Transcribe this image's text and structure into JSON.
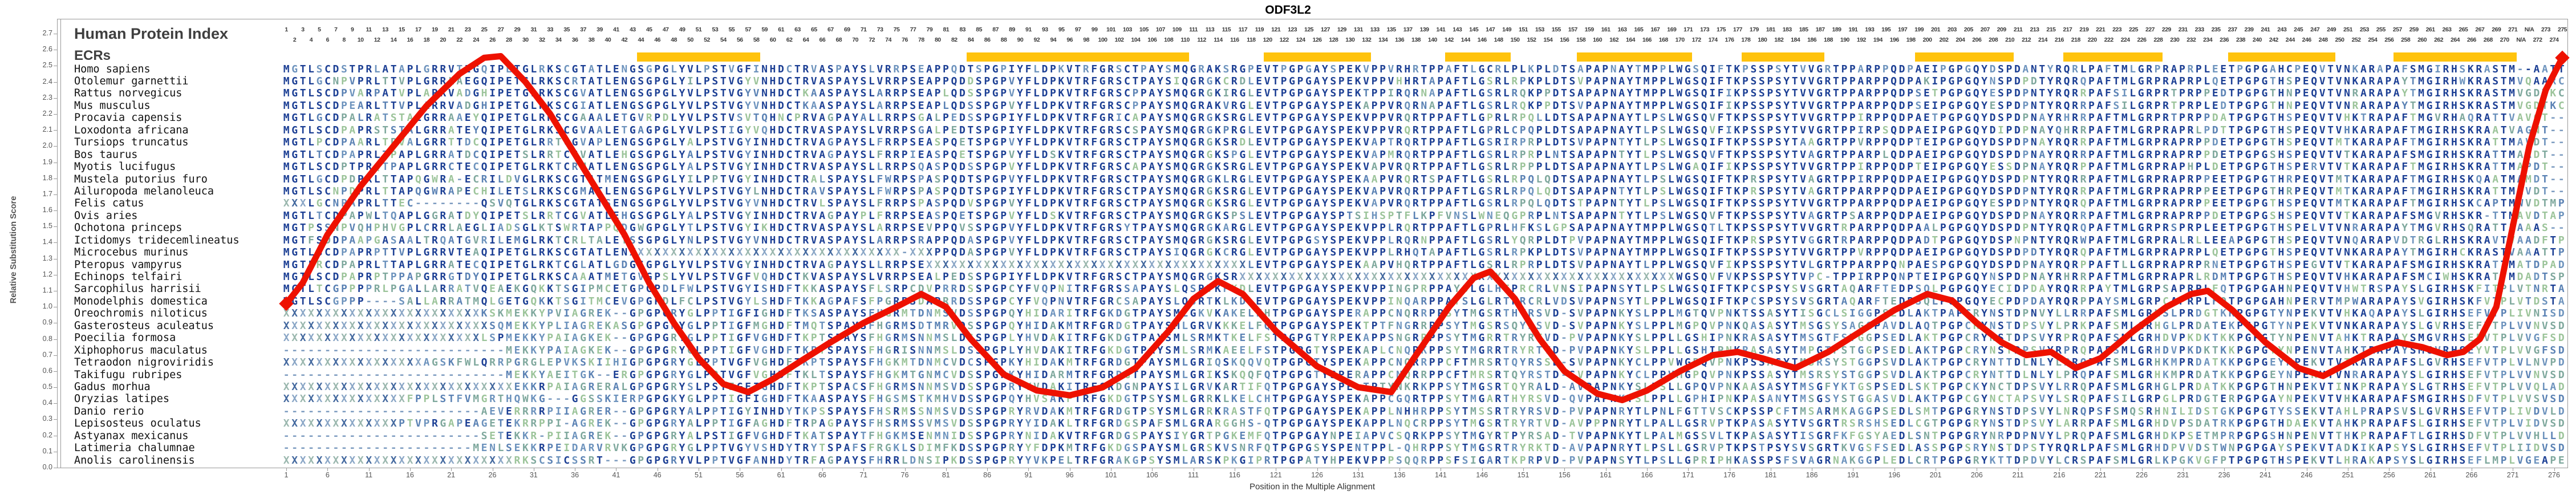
{
  "title": "ODF3L2",
  "header": {
    "index_label": "Human Protein Index",
    "ecrs_label": "ECRs",
    "total_columns": 277,
    "na_columns": [
      272,
      273
    ],
    "na_text": "N/A"
  },
  "y_axis": {
    "label": "Relative Substitution Score",
    "min": 0.0,
    "max": 2.7,
    "step": 0.1
  },
  "x_axis": {
    "label": "Position in the Multiple Alignment",
    "tick_start": 1,
    "tick_step": 5,
    "tick_end": 276
  },
  "colors": {
    "curve": "#ee1100",
    "ecr": "#ffc30d",
    "match": "#1c3f94",
    "mid": "#6d93bd",
    "teal": "#7fa89d",
    "green": "#9cc49a",
    "slate": "#5b82b4",
    "gap": "#7d9cc0",
    "x1": "#44699f",
    "x2": "#8aa6c6",
    "x3": "#9ab7ae",
    "axis": "#999999"
  },
  "chart_data": {
    "type": "line",
    "title": "ODF3L2",
    "xlabel": "Position in the Multiple Alignment",
    "ylabel": "Relative Substitution Score",
    "ylim": [
      0.0,
      2.7
    ],
    "xlim": [
      1,
      277
    ],
    "legend": [],
    "grid": false,
    "ecr_regions_columns": [
      [
        44,
        58
      ],
      [
        84,
        110
      ],
      [
        120,
        132
      ],
      [
        142,
        149
      ],
      [
        158,
        171
      ],
      [
        178,
        187
      ],
      [
        199,
        210
      ],
      [
        217,
        228
      ],
      [
        237,
        249
      ],
      [
        257,
        271
      ]
    ],
    "curve": [
      [
        1,
        1.02
      ],
      [
        3,
        1.15
      ],
      [
        6,
        1.45
      ],
      [
        10,
        1.75
      ],
      [
        14,
        2.0
      ],
      [
        18,
        2.25
      ],
      [
        22,
        2.45
      ],
      [
        25,
        2.55
      ],
      [
        27,
        2.56
      ],
      [
        30,
        2.4
      ],
      [
        33,
        2.2
      ],
      [
        36,
        1.95
      ],
      [
        39,
        1.7
      ],
      [
        42,
        1.45
      ],
      [
        45,
        1.15
      ],
      [
        48,
        0.9
      ],
      [
        51,
        0.68
      ],
      [
        54,
        0.52
      ],
      [
        57,
        0.47
      ],
      [
        60,
        0.55
      ],
      [
        63,
        0.65
      ],
      [
        67,
        0.78
      ],
      [
        71,
        0.9
      ],
      [
        75,
        1.0
      ],
      [
        78,
        1.08
      ],
      [
        81,
        1.0
      ],
      [
        84,
        0.8
      ],
      [
        88,
        0.58
      ],
      [
        92,
        0.48
      ],
      [
        96,
        0.45
      ],
      [
        100,
        0.5
      ],
      [
        104,
        0.62
      ],
      [
        108,
        0.85
      ],
      [
        111,
        1.05
      ],
      [
        114,
        1.16
      ],
      [
        117,
        1.08
      ],
      [
        121,
        0.85
      ],
      [
        126,
        0.63
      ],
      [
        131,
        0.5
      ],
      [
        135,
        0.47
      ],
      [
        138,
        0.7
      ],
      [
        142,
        1.0
      ],
      [
        145,
        1.18
      ],
      [
        147,
        1.22
      ],
      [
        150,
        1.05
      ],
      [
        153,
        0.8
      ],
      [
        156,
        0.6
      ],
      [
        160,
        0.46
      ],
      [
        163,
        0.42
      ],
      [
        166,
        0.48
      ],
      [
        170,
        0.6
      ],
      [
        174,
        0.7
      ],
      [
        177,
        0.72
      ],
      [
        180,
        0.68
      ],
      [
        184,
        0.62
      ],
      [
        188,
        0.72
      ],
      [
        192,
        0.85
      ],
      [
        196,
        0.98
      ],
      [
        200,
        1.08
      ],
      [
        203,
        1.04
      ],
      [
        206,
        0.9
      ],
      [
        209,
        0.78
      ],
      [
        212,
        0.7
      ],
      [
        215,
        0.72
      ],
      [
        218,
        0.62
      ],
      [
        221,
        0.68
      ],
      [
        225,
        0.85
      ],
      [
        229,
        1.0
      ],
      [
        232,
        1.08
      ],
      [
        234,
        1.1
      ],
      [
        237,
        0.98
      ],
      [
        241,
        0.78
      ],
      [
        245,
        0.62
      ],
      [
        248,
        0.57
      ],
      [
        251,
        0.65
      ],
      [
        254,
        0.73
      ],
      [
        257,
        0.78
      ],
      [
        260,
        0.75
      ],
      [
        263,
        0.7
      ],
      [
        265,
        0.72
      ],
      [
        267,
        0.8
      ],
      [
        269,
        1.0
      ],
      [
        271,
        1.5
      ],
      [
        273,
        2.0
      ],
      [
        275,
        2.35
      ],
      [
        277,
        2.55
      ]
    ]
  },
  "species": [
    {
      "name": "Homo sapiens",
      "seq": "MGTLSCDSTPRLATAPLGRRVTEGQIPETGLRKSCGTATLENGSGPGLYVLPSTVGFINHDCTRVASPAYSLVRRPSEAPPQDTSPGPIYFLDPKVTRFGRSCTPAYSMQGRAKSRGPEVTPGPGAYSPEKVPPVRHRTPPAFTLGCRLPLKPLDTSAPAPNAYTMPPLWGSQIFTKPSSPSYTVVGRTPPARPPQDPAEIPGPGQYDSPDANTYRQRLPAFTMLGRPRAPRPLEETPGPGAHCPEQVTVNKARAPAFSMGIRHSKRASTM--AATT"
    },
    {
      "name": "Otolemur garnettii",
      "seq": "MGTLGCNPVPRLTTVPLGRRLAEGQIPETGLRKSCRTATLENGSGPGLYILPSTVGYVNHDCTRVASPAYSLVRRPSEAPPQDDSPGPVYFLDPKVTRFGRSCTPAYSIQGRGKCRDLEVTPGPGAYSPEKVPPVHHRTAPAFTLGSRLRPKPLDTSVPAPNAYTMPPLWGSQIFTKPSSPSYTVVGRTPPARPPQDPAKIPGPGQYNSPDPDTYRQRQPAFTMLGRPRAPRPLQETPGPGTHSPEQVTVNKARAPAYTMGIRHWKRASTMVQAARC"
    },
    {
      "name": "Rattus norvegicus",
      "seq": "MGTLSCDPVARPATVPLARRVADGHIPETGLRKSCGVATLENGSGPGLYVLPSTVGYVNHDCTKAASPAYSLARRPSEAPLQDSSPGPVYFLDPKVTRFGRSCPPAYSMQGRGKIRGLEVTPGPGAYSPEKTPPIRQRNAPAFTLGSRLRQKPPDTSAPAPNAYTMPPLWGSQIFIKPSSPSYTVVGRTPPARPPQDPSETPGPGQYESPDPNTYRQRRPAFSILGRPRTPRPPEDTPGPGTHNPEQVTVNRARAPAYTMGIRHSKRASTMVGDTKC"
    },
    {
      "name": "Mus musculus",
      "seq": "MGTLSCDPEARLTTVPLARRVADGHIPETGLRKSCGIATLENGSGPGLYVLPSTVGYVNHDCTKAASPAYSLARRPSEAPLQDSSPGPVYFLDPKVTRFGRSCPPAYSMQGRAKVRGLEVTPGPGAYSPEKAPPVRQRNAPAFTLGSRLRQKPPDTSVPAPNAYTMPPLWGSQIFIKPSSPSYTVVGRTPPARPPQDPSEIPGPGQYESPDPNTYRQRRPAFSILGRPRTPRPLEDTPGPGTHNPEQVTVNRARAPAYTMGIRHSKRASTMVGDTKC"
    },
    {
      "name": "Procavia capensis",
      "seq": "MGTLGCDPALRATSTALGRRAAEYQIPETGLRKSCGAAALETGVRPDLYVLPSTVSVTQHNCPRVAGPAYALLRRPSGALPEDSSPGPIYFLDPKVTRFGRICAPAYSMQGRGKSRGLEVTPGPGAYSPEKVPPVRQRTPPAFTLGPRLRPQLLDTSAPAPNAYTLPSLWGSQVFTKPSSPSYTVVGRTPPIRPPQDPAETPGPGQYDSPDPNAYRHRRPAFTMLGRPRTPRPPDATPGPGTHSPEQVTVHKTRAPAFTMGVRHAQRATTVAVGT--"
    },
    {
      "name": "Loxodonta africana",
      "seq": "MGTLSCDPAPRSTSTALGRRATEYQIPETGLRKSCGVAALETGAGPGLYVLPSTIGYVQHDCTRVASPAYSLVRRPSGALPEDTSPGPIYFLDPKVTRFGRSCSPAYSMQGRGKPRGLEVTPGPGAYSPEKVPPVRQRTPPAFTLGPRLCPQPLDTSAPAPNAYTLPSLWGSQVFIKPSSPSYTVVGRTPPIRPSQDPAEIPGPGQYDIPDPNAYQHRRPAFTMLGRPRAPRLPDTTPGPGTHSPEQVTVHKARAPAFTMGIRHSKRAATVAGNT--"
    },
    {
      "name": "Tursiops truncatus",
      "seq": "MGTLPCDPAARLTPVALGRRTTDCQIPETGLRRTCGVAPLENGSGPGLYALPSTVGYINHDCTRVAGPAYSLFRRPSEASPQETSPGPVYFLDPKVTRFGRSCTPAYSMQGRGKSRDLEVTPGPGAYSPEKVAPTRQRTPPAFTLGSRIRPRPLDTSVPAPNTYTLPSLWGSQIFTKPSSPSYTAAGRTPPVRPPQDPTEIPGPGQYDSPDPNAYRQRRPAFTMLGRPRAPRPPDETPGPGTHSPEQVTMTKARAPAFTMGIRHSKRATTMAVDT--"
    },
    {
      "name": "Bos taurus",
      "seq": "MGTLTCDPAPRLTPAPLGRRATDCQIPETSLRRTCGVATLEHGSGPGLYALPSTVGYINHDCTRVAGPAYSLFRRPIEASPQETSPGPVYFLDSKVTRFGRSCTPAYSMQGRGKSPGLEVTPGPGAYSPEKVAPMRQRTPPAFTLGSRLRPRPLNTSAPAPNTYTLPSLWGSQVFTKPSSPSYTVAGRTPPARPLQDPAEIPGPGQYDSPDPNAYRQRRPAFTMLGRPRAPRPPDETPGPGSHSPEQVTVTKARAPAFSMGIRHSKRATTMAADT--"
    },
    {
      "name": "Myotis lucifugus",
      "seq": "MGTLSCDPTPRQTPAPLGRRCTECQIPETGLRKTCRMATLENGSGPGLYALPSTVGYINHDCTRVASPAYSLLRRPSQASPQDSSPGPVYFLDPKVTRFGRSCAPAYSMQGRGKSRGLEVTPGPGAYSPEKVAPVRQRTPPAFTLGSRLRPPPLDTSAPAPNAYTLPSLWGAQIFIKPSSPSYTVVGRTPPIRPPQDPTEIPGPGQYESSDPNAYRQRPPAFTMLGRPRAPHPLDETPGPGTHSPERVTVTKARAPAFTMGIRHSKRATTMAPDT--"
    },
    {
      "name": "Mustela putorius furo",
      "seq": "MGTLGCDPDPRLTTAPQGWRA-ECRILDVGLRKSCGTATMENGSGPGLYILPPTVGYINHDCTRALSPAYSLFWRPSPASPQDTSPGPVYFLDPKVTRFGRSCTPAYSMQGRGKLRGLEVTPGPGAYSPEKAAPVRQRTSPAFTLGSRLRPQLQDTSAPAPNAYTLPSLWGSQIFTKPRSPSYTVAGRTPPIRPPQDPAEIPGPGQYDSPDPNTYRQRRPAFTMLGRPRAPRPPEETPGPGTHRPEQVTMTKARAPAFTMGIRHSKQAATMAMDT--"
    },
    {
      "name": "Ailuropoda melanoleuca",
      "seq": "MGTLSCNPDPRLTTAPQGWRAPECHILETSLRKSCGMATLENGSGPGLYVLPSTVGYLNHDCTRAVSPAYSLFWRPSPASPQDTSPGPIYFLDPKVTRFGRSCTPAYSMQGRGKSRGLEVTPGPGAYSPEKVAPVRQRTPPAFTLGSRLRPQLQDTSAPAPNTYTLPSLWGSQIFTKPRSPSYTVAGRTPPARPPQDPAEIPGPGQYDSPDPNTYRQRRPAFTMLGRPRAPRPPEETPGPGTHRPEQVTMTKARAPAFTMGIRHSKRATTMAVDT--"
    },
    {
      "name": "Felis catus",
      "seq": "XXXLGCNPAPRLTTEC--------QSVQTGLRKSCGTATSENGSGPGLYVLPSTVGYVNHDCTRVLSPAYSLFRRPSPASPQDVSPGPVYFLDPKVTRFGRSCTPAYSMQGRGKSRGLEVTPGPGAYSPEKVAPVRQRTPPAFTLGSRLRPQLQDTSTPAPNTYTLPSLWGSQIFTKPSSPSYTVVGRTPPARPPQDPAEIPGPGQYESPDPNTYRQRQPAFTMLGRPRAPRPPEETPGPGTHSPEQVTMTKARAPAFTMGIRHSKCAPTMWVDTMP"
    },
    {
      "name": "Ovis aries",
      "seq": "MGTLTCDPAPWLTQAPLGGRATDYQIPETSLRRTCGVATLEHGSGPGLYALPSTVGYINHDCTRVAGPAYPLFRRPSEASPQETSPGPVYFLDSKVTRFGRSCTPAYSMQGRGKSPSLEVTPGPGAYSPTSIHSPTFLKPFVNSLWNEQGPRPLNTSAPAPNTYTLPSLWGSQVFTKPSSPSYTVAGRTPSARPPQDPAEIPGPGQYDSPDPNAYRQRRPAFTMLGRPRAPRPPDETPGPGSHSPEQVTVTKARAPAFSMGVRHSKR-TTMAVDTAP"
    },
    {
      "name": "Ochotona princeps",
      "seq": "MGTPSSNPVQHPHVGPLCRRLAEGLIADSGLKTSWRTAPPQDGWGPGLYTLPSTVGYIKHDCTRVASPAYSLARRPSEVPPQVSSPGPVYFLDPKVTRFGRSYTPAYSMQGRGKARGLEVTPGPGAYSPEKVPPLRQRTPPAFTLGPRLHFKSLGPSAPAPNAYTMPPLWGSQTLTKPSSPSYTVVGRTRPARPPQDPAALPGPGQYDSPDPNTYRQRQPAFTMLGRPRSPRPLEETPGPGTHSPELVTVNRARAPAYTMGVRHSQRATTLAAAS--"
    },
    {
      "name": "Ictidomys tridecemlineatus",
      "seq": "MGTFSDDPAAPGASAALTRQATGVRILEMGLRKTCRLTALETSSGPGLYNLPSTVGYVNHDCTRVASPAYSLARRPSRAPPQDASPGPVYFLDPKVTRFGRSCTPAYSMQGRGKSRGLEVTPGPGSYSPEKVPPLRQRNPPAFTLGSRLYQRPLDTPVPAPNAYTMPPLWGSQIFTKPRSPSYTVGGRTRPARPPQDPADTPGPGQYDSPNPNTYRQRWPAFTMLGRPRALRLLEEAPGPGTHSPEQVTVNQARAPVDTRGLRHSKRAVTVAADFTP"
    },
    {
      "name": "Microcebus murinus",
      "seq": "MGTLSCDPAPRPTTVPLGRRVTEAQIPETGLRKSCGTATLENXXXXXXXXXXXXXXXXXXXXXXXXXXXXXXXXX-XXXPPQDASPGPVYFLDPKVTRFGRSCTPAYSIQGRGKCRGLEVTPGPGAYSPEKVPPLRHQTAPAFTLGSRLRPKPLDTSVPAPNAYTMPPLWGSQIFTKPSSPSYTVVGRTPPVRPPQDPAEIPGPGQYDSPDPDTYRQRQPAFTMLGRPRAPRPLQETPGPGTHSPEQVTVNKARAPAYTMGIRHCKRASTVAAATTP"
    },
    {
      "name": "Pteropus vampyrus",
      "seq": "MGTLRCDPAPRLTTAPLGRRATECQIPETGLRKTCGLATLGDGSGPGLYVLPSTVGYINHDCTRVAGPAYSLLRRPSEXXXXXXXXXXXXXXXXXXXXXXXXXXXXXXXXXXXXXXXLEVTPGPGAYSPEKAAPVHQRTPPAFTLGSRLRPRPLDTSVPAPNAYTLPPLWGSQVFIKPSSPSYTVLGRTPPARPPQNPAESPGPGQYDSPDPNAYRQRPPAFTLLGRPRAPRPRNETPGPGTHSPEGVTVTKARAPAFSMGIRHSKRATTMATDPAD"
    },
    {
      "name": "Echinops telfairi",
      "seq": "MGTLSCDPAPRPTPPAPGRRGTDYQIPETGLRKSCAAATMETGVGPSLYVLPSTVGFVQHDCTKVASPAYSLVRRPSEALPEDSSPGPIYFLDPKVTRFGRSCTPAYSMQGRGKSRXXXXXXXXXXXXXXXXXXXXXXXXXXXXXXXXXXXXXXXXXXXXXXXXXXXXXWGSQVFVKPSSPSYTVPC-TPPIRPPQNPTEIPGPGQYNSPDPNAYRHRRPAFTMLGRPRAPRLRDMTPGPGTHSPEQVTVHKARAPAFSMCIWHSKRATTMDADTSP"
    },
    {
      "name": "Sarcophilus harrisii",
      "seq": "MGTLTCGPPPPRLPGALLARRATVQEAEKGQKKTSGIPMCETGPGPDLFWLPSTVGYISHDFTKKASPAYSFLSRPCDVPRRDSSPGPCYFVQPNITRFGRSSAPAYSLQSRTKPKDLEVTPGPGAYSPEKVPPINGPRPPAYSLGLHTPRCRLVNSIPAPNSYTLPSLWGSQIFTKPCSPSYSVSGRTAQARFTEDPSQLPGPGQYECIDPDAYRQRRPAYTMLGRPSAPRPLFQTPGPGAHNPEQVTVHWTRSPAYSLGIRHSKFITPLVTNRTA"
    },
    {
      "name": "Monodelphis domestica",
      "seq": "MGTLSCGPPP----SALLARRATMQLGETGQKKTSGITMCEVGPGPDLFCLPSTVGYLSHDFTKKAGPAFSFPGRPSDAPRRDSSPGPCYFVQPNVTRFGRCSAPAYSLQSRTKLKDLEVTPGPGAYSPEKVPPINQARPPAYSLGLRTPRCRLVDSVPAPNSYTLPPLWGSQIFTKPCSPSYSVSGRTAQARFTEDPSQLPGPGQYECPDPDAYRQRPPAYSMLGRPCAPRPLFQTPGPGAHNPERVTMPWARAPAYSVGIRHSKFVTPLVTDSTA"
    },
    {
      "name": "Oreochromis niloticus",
      "seq": "XXXXXXXXXXXXXXXXXXXXXXXXKSKMEKKYPVIAGREK--GPGPGRYGLPPTIGFIGHDFTKSASPAYSFHGRMTDNMSVDSSPGPQYHIDARITRFGKDGTPAYSMLGKVKAKELFHTPGPGAYSPERAPPCNQRRPPSYTMGSRTHYRSVD-SVPAPNKYSLPPLMGTQVPNKTSSASYTISGCLSIGGPSEDLAKTPAPCRYNSTDPNVYLLRRPAFSMLGRHSLPRDGTKKPGPGTYNPEKVTVHKAQAPAYSLGIRHSEFVTPLIVNISD"
    },
    {
      "name": "Gasterosteus aculeatus",
      "seq": "XXXXXXXXXXXXXXXXXXXXXXXXXSQMEKKYPLIAGREKASGPGPGRYGLPPTIGFMGHDFTMQTSPAYSFHGRMSDTMRVDSSPGPQYHIDAKMTRFGRDGTPAYSMLGRVKKKELFQTPGPGAYSPEKTPTFNGRRPPSYTMGSRSQYRSVD-SVPAPNKYSLPPLMGPQVPNKQASASYTMSGSYSAGGPAVDLAQTPGPCRYNSTDPSVYLPRKPAFSMLGRHGLPRDATEKPGPGTYNPEKVTVNKARAPAYSLGVRHSEFVTPLVVNVSD"
    },
    {
      "name": "Poecilia formosa",
      "seq": "XXXXXXXXXXXXXXXXXXXXXXXXLSPMEKKYPAIAGKEK--GPGPGRYGLPPTIGFVGHDFTKPTSPAYSFHGRMSNNMSLDSSPGPLYHVDAKITRFGKDGTPAYSMLSRMKTKELFSTPGPGTYRPEKAPPSNGRRPPSYTMGRRTRYRTVD-PVPAPNKYSLPPLLGSHIPNKRASASYTMSGTFSTGGPSEDLAKTPGPCRYNSTDPSVYRPRQPAFSMLGRHDVPKDKTKKPGPGTYNPENVTAHKTRAPAYSMGVRHSEFVTPLVVGFSD"
    },
    {
      "name": "Xiphophorus maculatus",
      "seq": "---------------------------MEKKYPAIAGKEK--GPGPGRYGLPPTIGFVGHDFTKPTSPAYSFHGRISNNMSLDSSPGPLYHVDAKITRFGKDGTPAYSMLSRMKAEELFSTPGPGTYSPEKAPLCNQRKPPSYTMGRRTRYRTVD-PVPAPNKYSLPPLLGSHIPNKRASASYTMPGTFSTGGPSEDLAKTPGPCRYNSTDPSVYRPRQPAFSMLGRHDVPKDKTKKPGPGTYNPENVTAHKTRAPAYSMGVRHSEYVTPLVVGFSD"
    },
    {
      "name": "Tetraodon nigroviridis",
      "seq": "XXXXXXXXXXXXXXXXXAGSKFWLQRRPGRGLEPVKSKIIHIGPGPGRYGLPPTVGFVGHDFTKPTSPAYSFHGKMTDNMCVDCSPGPKYHIDAKMTRFGRDGTPAYSMLGRIQSKQQVQTPGPGTYSPEKAPPCNQRRPPCFTMRSRTQYRSSD-SVPAPNKYCLPPVWGPQVPNKPSSASYTMSRSYSTGGPSVDLAKTPGPCRYNTTDLNLYLPRQPAFSMLGRHKMPRDATKKPGPGEYNPEKVTVTKARAPAFSLGVRHSEFVTPLVLNVPD"
    },
    {
      "name": "Takifugu rubripes",
      "seq": "---------------------------MEKKYAEITGK--ERGPGPGRYGLPPTVGFVGHDFTKLTSPAYSFHGKMTGNMCVDSSPGPKYHIDARMTRFGRDGTPAYSMLGRIKSKQQFQTPGPGTYSPERAPPCNQRRPPCFTMRSRTQYRSTD-SVPAPNKYCLPPVMGPQVPNKPSSASYTMSRSYSTGGPSVDLAKTPGPCRYNTTDLNLYLPRQPAFSMLGRHKMPRDATKKPGPGEYNPEKVTVNRARAPAYSLGIRHSEFVTPLVVNVSD"
    },
    {
      "name": "Gadus morhua",
      "seq": "XXXXXXXXXXXXXXXXXXXXXXXXXXXXEKKRPAIAGRERALGPGPGRYSLPSTIGFIGHDFTKPTSPACSFHGRMSNNMSVDSSPGPRYYVDAKITRFGRDGNPAYSILGRVKARTIFQTPGPGAYSPE-TPTYNKRKPPSYTMGSRTQYRALD-AVPAPNKYSLPSLLGPQVPNKAASASYTMSGFYKTGSPSEDLSKTPGPCKYNCTDPSVYLRRQPAFSMLGRHGLPRDATKKPGPGTHNPEKVTINKPRAPAYSLGTRHSEFVTPLVVQLAD"
    },
    {
      "name": "Oryzias latipes",
      "seq": "XXXXXXXXXXXXXXXFPPLSTFVMGRTHQWKG---GGSSKIERPGPGKYGLPPTIGFIGHDFTKAASPAYSFHGSMSTKMHVDSSPGPQYHVSAKFTRFGKDGTPSYSMLGRRKLKELCHTPGPGAYSPEKAPPCGQRTPPSYTMGARTHYRSVD-QVPAPNKYSLPPLLGPHIPNKPASANYTMSGSYSTGGASVDLAKTPGPCGYNCTAPSVYLSRQPAFSILGRPGLPRDGTERPGPGAYNPEKVTVHKARAPAFSMGIRHSDFVTPLVVSVSD"
    },
    {
      "name": "Danio rerio",
      "seq": "------------------------AEVERRRRPIIAGRER--GPGPGRYALPPTIGYINHDYTKPSSPAYSFHSRMSSNMSVDSSPGPRYRVDAKMTRFGRDGTPSYSMLGRRKRASTFQTPGPGAYSPEKAPPLNHHRPPSYTMSSRTRYRSVD-PVPAPNRYTLPNLFGTTVSCKPSSPCFTMSARMKAGGPSEDLSMTPGPGRYNSTDPSVYLNRQPSFSMQSRHNILIDSTGKPGPGTYSSEKVTAHLPRAPSVSLGVRHSEFVTPLIVDVLD"
    },
    {
      "name": "Lepisosteus oculatus",
      "seq": "XXXXXXXXXXXXXXPTVPRGAPEAGETEKRRPPI-AGREK--GPGPGRYALPPTIGFAGHDFTRPAGPAYSFHSRMSSVMSVDSSPGPRYYIDAKLTRFGRDGSPAFSMLGRARGGHS-QTPGPGAYSPEKAPPLNQCRPPSYTMGSRTRYRTVD-AVPPPNRYTLPALLGSRVPTKPASASYTVSGRTRSRSHSEDLCGTPGPGRYNSTDPSVYLARRPAFSMLGRHDVPSDATRKPGPGTHDAEKVTAHKPRAPAFSLGIRHSEFVTPLVIDVSD"
    },
    {
      "name": "Astyanax mexicanus",
      "seq": "------------------------SETEKKR-PIIAGREK--GPGPGRYALPSTIGFVGHDFTKATSPAYTFHGKMSENMNIDSSPGPRYNIDAKVTRFGRDGSPAYSIYGRTPGKEMFQTPGPGAYNPEIAPVCSQRKPPSYTMGYRTPYRSAD-TVPAPNKYTLPALMGSSVLTKPASASYTISGRFKFGSYAEDLSNTPGPGRYNRPDPNVYLPRQPAFSMLGRHDKPSETMPRPGPGSHNPENVTTHKPRAPAFTLGIRHSDFVTPLVVHLLD"
    },
    {
      "name": "Latimeria chalumnae",
      "seq": "-----------------------MENLSEKKRPEIDARVRVKGPGPGRYGLPPTVGYVSHDYTRYTSPAFSFRGKLSDIMFKDSSPGPRYYFDPKMTRFGKDGSPAYSMLGRSKVSNRFQTPGPGSYSPENTPPL-QHRPPSYTMGSRTRYRKTD-AVPAPNRYTLPSLLGSRVPTKPSTPSYSVSGRTKVGSFSEDLASSPGPSRYNSTDPSTYRQRLPAFSMLGRHDPVVDSTWNPGPGAYSPEKVTADKIKAPSYSLGIRHSEFVTPLIIDVSD"
    },
    {
      "name": "Anolis carolinensis",
      "seq": "XXXXXXXXXXXXXXXXXXXXXXXXXXXXRKSCSICSSRT---GPGPGRYVLPPTVGFANHDYTRFAGPAYSFHRRLDNSIPKDSSPGPRYYVKPELTRFGRAKGPSYSMLARSKPKGIPRTPGPATYHPEKVPPPSQQRPPSFSIGARTKPRPVD-PVPAPNSYTLPSLLGPRIPHKASSPSFSVAGRNAKGGPLEDLCRTPGPGRYKTTDPDVYLCRSPAFSMLGRLKPGKVGFPTPGPGTHSPEKVTLHRAKAPSYSLGIRHSEFLMPLVGEAPE"
    }
  ]
}
